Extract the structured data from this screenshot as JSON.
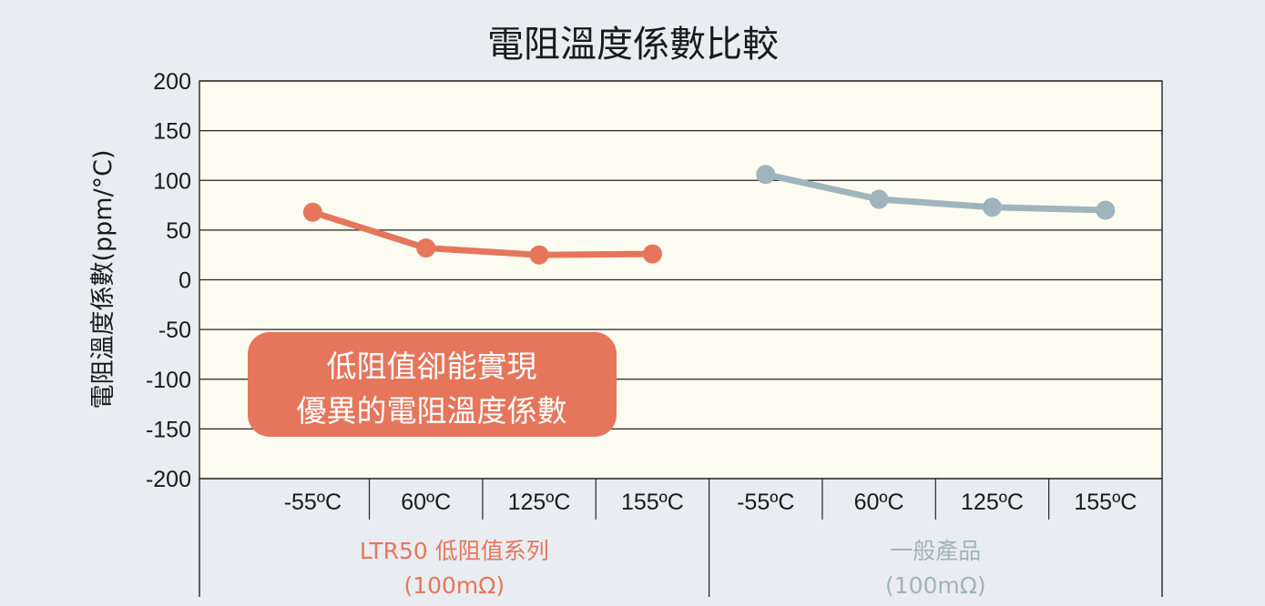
{
  "chart_data": {
    "type": "line",
    "title": "電阻溫度係數比較",
    "ylabel": "電阻溫度係數(ppm/°C)",
    "ylim": [
      -200,
      200
    ],
    "yticks": [
      200,
      150,
      100,
      50,
      0,
      -50,
      -100,
      -150,
      -200
    ],
    "grid": true,
    "groups": [
      {
        "name_line1": "LTR50 低阻值系列",
        "name_line2": "(100mΩ)",
        "color": "#e5765c",
        "categories": [
          "-55ºC",
          "60ºC",
          "125ºC",
          "155ºC"
        ],
        "values": [
          68,
          32,
          25,
          26
        ]
      },
      {
        "name_line1": "一般產品",
        "name_line2": "(100mΩ)",
        "color": "#9fb4bd",
        "categories": [
          "-55ºC",
          "60ºC",
          "125ºC",
          "155ºC"
        ],
        "values": [
          106,
          81,
          73,
          70
        ]
      }
    ],
    "annotation": {
      "line1": "低阻值卻能實現",
      "line2": "優異的電阻溫度係數",
      "color": "#e5765c"
    }
  },
  "colors": {
    "background": "#e9edf1",
    "plot_background": "#fdfcf0",
    "axis": "#222222"
  }
}
